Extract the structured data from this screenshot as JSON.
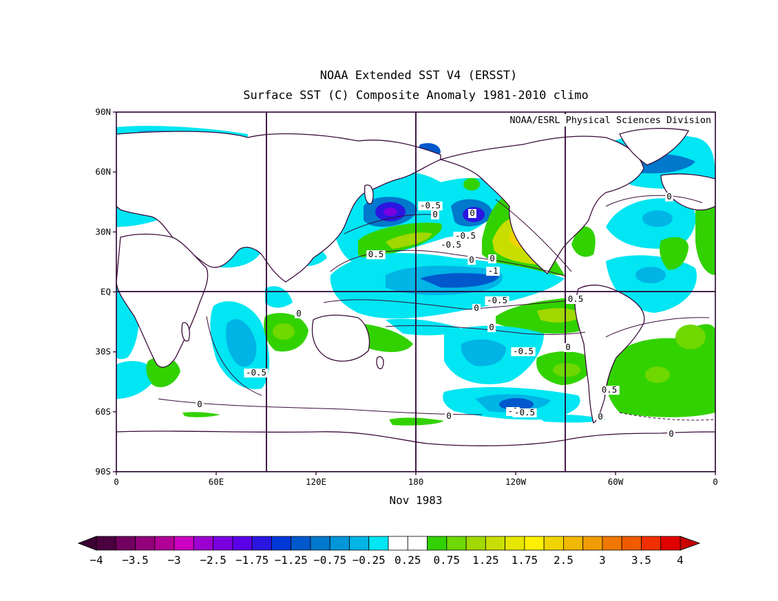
{
  "title": {
    "line1": "NOAA Extended SST V4 (ERSST)",
    "line2": "Surface SST (C) Composite Anomaly 1981-2010 climo"
  },
  "credit": "NOAA/ESRL Physical Sciences Division",
  "date_label": "Nov 1983",
  "lat_labels": [
    "90N",
    "60N",
    "30N",
    "EQ",
    "30S",
    "60S",
    "90S"
  ],
  "lon_labels": [
    "0",
    "60E",
    "120E",
    "180",
    "120W",
    "60W",
    "0"
  ],
  "contour_labels": [
    "-0.5",
    "0",
    "-0.5",
    "0.5",
    "-0.5",
    "0",
    "0.5",
    "-1",
    "-0.5",
    "0",
    "0.5",
    "0",
    "-0.5",
    "0",
    "0",
    "0",
    "-0.5",
    "0.5",
    "0",
    "-1",
    "-0.5",
    "0",
    "0",
    "0",
    "0",
    "0"
  ],
  "colorbar": {
    "labels": [
      "-4",
      "-3.5",
      "-3",
      "-2.5",
      "-1.75",
      "-1.25",
      "-0.75",
      "-0.25",
      "0.25",
      "0.75",
      "1.25",
      "1.75",
      "2.5",
      "3",
      "3.5",
      "4"
    ],
    "colors": [
      "#4b0040",
      "#720060",
      "#92007a",
      "#b00095",
      "#cc00c0",
      "#9b00d0",
      "#7a00e0",
      "#5a00e8",
      "#2a16e0",
      "#0038d8",
      "#0058cc",
      "#0078cc",
      "#0096d8",
      "#00b4e6",
      "#00e6f2",
      "#ffffff",
      "#ffffff",
      "#32d200",
      "#6ed800",
      "#a0d800",
      "#c8de00",
      "#e6e600",
      "#fff000",
      "#f0d400",
      "#f0b800",
      "#f09c00",
      "#f07800",
      "#f05a00",
      "#f03000",
      "#e00000"
    ],
    "left_arrow_color": "#3c0032",
    "right_arrow_color": "#c80000"
  },
  "chart_data": {
    "type": "heatmap",
    "title": "NOAA Extended SST V4 (ERSST) — Surface SST (C) Composite Anomaly 1981-2010 climo",
    "xlabel": "Nov 1983",
    "x_range": [
      0,
      360
    ],
    "y_range": [
      -90,
      90
    ],
    "contour_interval": 0.25,
    "units": "C",
    "anomaly_regions": [
      {
        "lon": 163,
        "lat": 40,
        "value": -2.0
      },
      {
        "lon": 202,
        "lat": 39,
        "value": -1.75
      },
      {
        "lon": 178,
        "lat": 28,
        "value": 0.75
      },
      {
        "lon": 240,
        "lat": 30,
        "value": 1.5
      },
      {
        "lon": 215,
        "lat": 5,
        "value": -1.0
      },
      {
        "lon": 265,
        "lat": -12,
        "value": 0.75
      },
      {
        "lon": 223,
        "lat": -57,
        "value": -1.0
      },
      {
        "lon": 268,
        "lat": -37,
        "value": 0.75
      },
      {
        "lon": 335,
        "lat": -35,
        "value": 0.75
      },
      {
        "lon": 68,
        "lat": -22,
        "value": -0.75
      },
      {
        "lon": 98,
        "lat": -20,
        "value": 0.75
      },
      {
        "lon": 25,
        "lat": -38,
        "value": 0.5
      },
      {
        "lon": 300,
        "lat": 42,
        "value": -1.0
      },
      {
        "lon": 315,
        "lat": 35,
        "value": -0.75
      }
    ]
  }
}
